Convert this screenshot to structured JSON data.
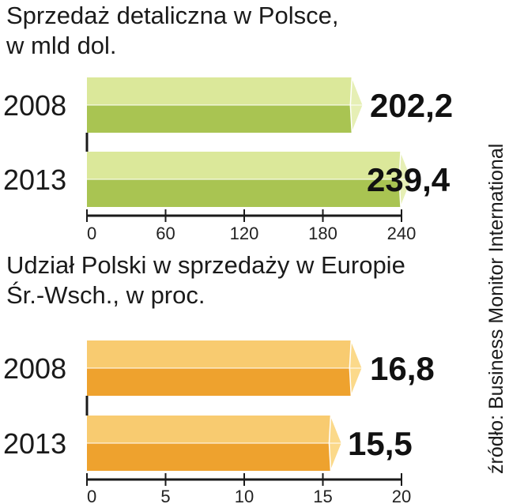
{
  "chart_data": [
    {
      "type": "bar",
      "title_line1": "Sprzedaż detaliczna w Polsce,",
      "title_line2": "w mld dol.",
      "categories": [
        "2008",
        "2013"
      ],
      "values": [
        202.2,
        239.4
      ],
      "value_labels": [
        "202,2",
        "239,4"
      ],
      "xlim": [
        0,
        240
      ],
      "ticks": [
        0,
        60,
        120,
        180,
        240
      ],
      "tick_labels": [
        "0",
        "60",
        "120",
        "180",
        "240"
      ],
      "colors": {
        "light": "#dbe89a",
        "dark": "#a9c452",
        "tip": "#e6efb5"
      }
    },
    {
      "type": "bar",
      "title_line1": "Udział Polski w sprzedaży w Europie",
      "title_line2": "Śr.-Wsch., w proc.",
      "categories": [
        "2008",
        "2013"
      ],
      "values": [
        16.8,
        15.5
      ],
      "value_labels": [
        "16,8",
        "15,5"
      ],
      "xlim": [
        0,
        20
      ],
      "ticks": [
        0,
        5,
        10,
        15,
        20
      ],
      "tick_labels": [
        "0",
        "5",
        "10",
        "15",
        "20"
      ],
      "colors": {
        "light": "#f8cb70",
        "dark": "#eea22e",
        "tip": "#fbd98a"
      }
    }
  ],
  "source": "źródło: Business Monitor International"
}
